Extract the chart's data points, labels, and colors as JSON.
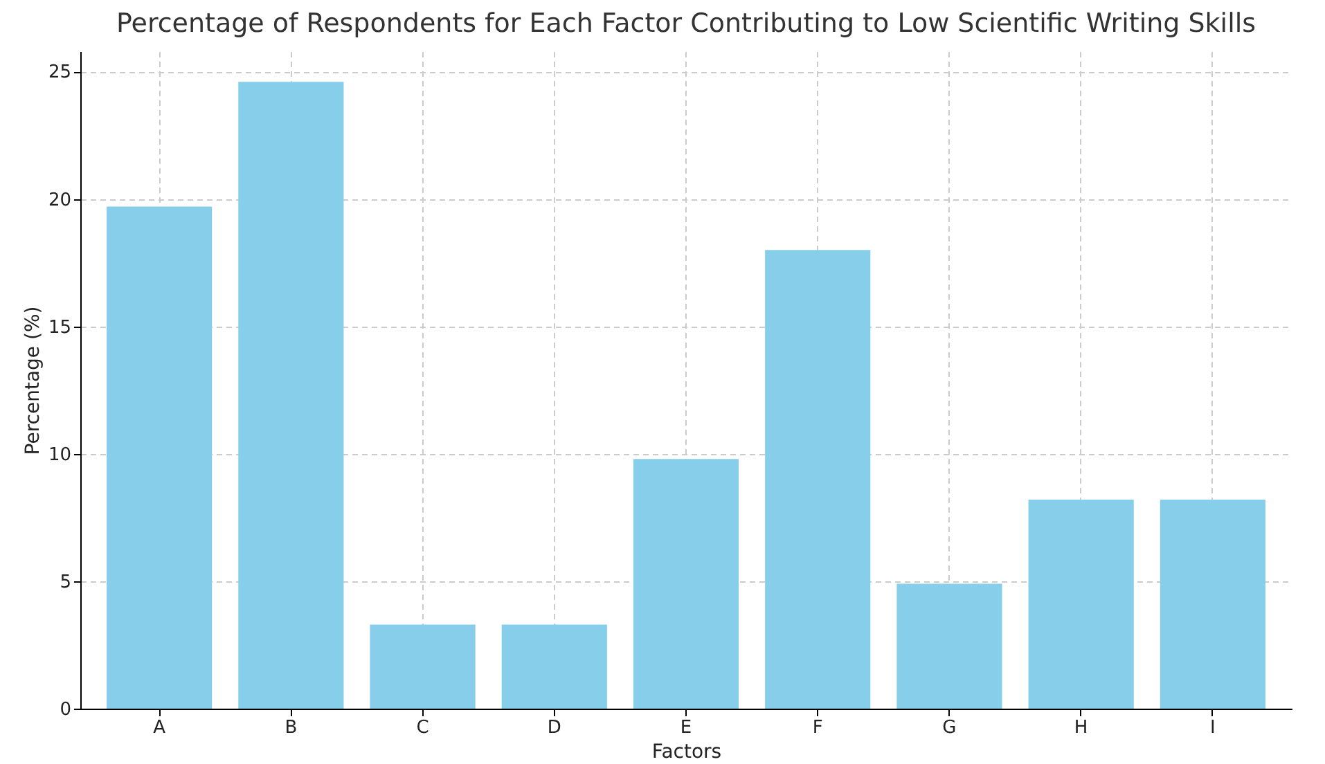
{
  "chart_data": {
    "type": "bar",
    "title": "Percentage of Respondents for Each Factor Contributing to Low Scientific Writing Skills",
    "xlabel": "Factors",
    "ylabel": "Percentage (%)",
    "categories": [
      "A",
      "B",
      "C",
      "D",
      "E",
      "F",
      "G",
      "H",
      "I"
    ],
    "values": [
      19.7,
      24.6,
      3.3,
      3.3,
      9.8,
      18.0,
      4.9,
      8.2,
      8.2
    ],
    "color": "#87ceeb",
    "ylim": [
      0,
      25.8
    ],
    "yticks": [
      0,
      5,
      10,
      15,
      20,
      25
    ],
    "grid": true,
    "line_style": "dashed"
  }
}
